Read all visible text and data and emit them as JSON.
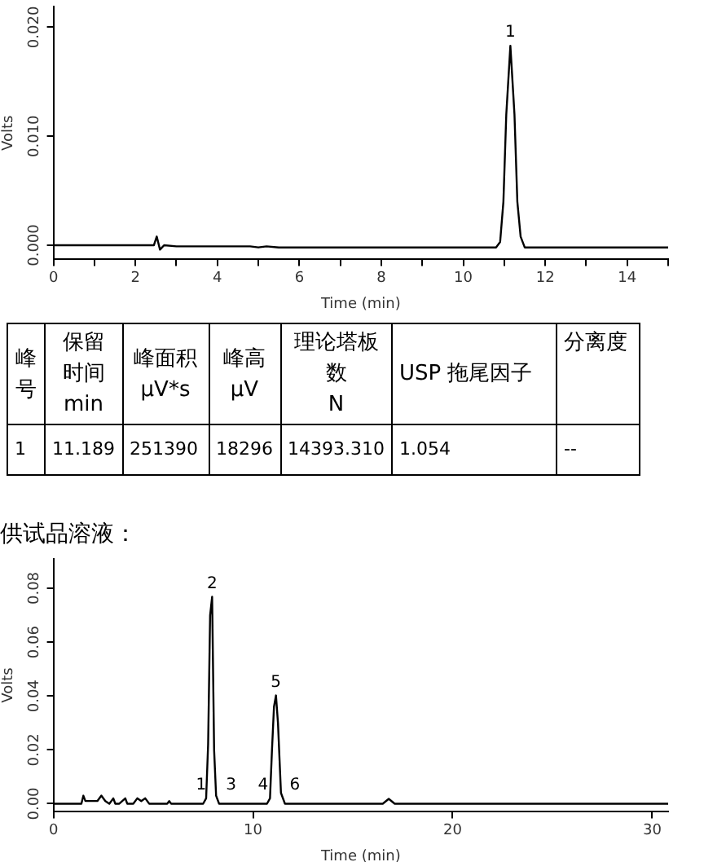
{
  "chart_data": [
    {
      "type": "line",
      "xlabel": "Time (min)",
      "ylabel": "Volts",
      "xlim": [
        0,
        15
      ],
      "ylim": [
        -0.0013,
        0.0219
      ],
      "xticks": [
        0,
        {
          "value": 1,
          "label": null
        },
        2,
        {
          "value": 3,
          "label": null
        },
        4,
        {
          "value": 5,
          "label": null
        },
        6,
        {
          "value": 7,
          "label": null
        },
        8,
        {
          "value": 9,
          "label": null
        },
        10,
        {
          "value": 11,
          "label": null
        },
        12,
        {
          "value": 13,
          "label": null
        },
        14,
        {
          "value": 15,
          "label": null
        }
      ],
      "yticks": [
        {
          "value": 0,
          "label": "0.000"
        },
        {
          "value": 0.01,
          "label": "0.010"
        },
        {
          "value": 0.02,
          "label": "0.020"
        }
      ],
      "grid": false,
      "legend": false,
      "marker": "none",
      "line_style": "solid",
      "series": [
        {
          "color": "#000000",
          "x": [
            0,
            2.45,
            2.52,
            2.6,
            2.7,
            3.0,
            4.8,
            5.0,
            5.2,
            5.5,
            6.0,
            10.8,
            10.9,
            10.98,
            11.05,
            11.15,
            11.25,
            11.32,
            11.4,
            11.5,
            15
          ],
          "values": [
            0,
            0,
            0.0008,
            -0.0004,
            0,
            -0.0001,
            -0.0001,
            -0.0002,
            -0.0001,
            -0.0002,
            -0.0002,
            -0.0002,
            0.0003,
            0.004,
            0.012,
            0.0183,
            0.012,
            0.004,
            0.0008,
            -0.0002,
            -0.0002
          ]
        }
      ],
      "annotations": [
        {
          "text": "1",
          "x": 11.15,
          "y": 0.0183
        }
      ]
    },
    {
      "type": "other",
      "annotations": [
        "峰号",
        "保留时间\nmin",
        "峰面积\nµV*s",
        "峰高\nµV",
        "理论塔板数\nN",
        "USP 拖尾因子",
        "分离度",
        "1",
        "11.189",
        "251390",
        "18296",
        "14393.310",
        "1.054",
        "--"
      ]
    },
    {
      "type": "line",
      "title": "供试品溶液：",
      "xlabel": "Time (min)",
      "ylabel": "Volts",
      "xlim": [
        0,
        30.8
      ],
      "ylim": [
        -0.003,
        0.091
      ],
      "xticks": [
        0,
        10,
        20,
        30
      ],
      "yticks": [
        {
          "value": 0,
          "label": "0.00"
        },
        {
          "value": 0.02,
          "label": "0.02"
        },
        {
          "value": 0.04,
          "label": "0.04"
        },
        {
          "value": 0.06,
          "label": "0.06"
        },
        {
          "value": 0.08,
          "label": "0.08"
        }
      ],
      "grid": false,
      "legend": false,
      "marker": "none",
      "line_style": "solid",
      "series": [
        {
          "color": "#000000",
          "x": [
            0,
            1.4,
            1.5,
            1.6,
            1.8,
            2.2,
            2.4,
            2.6,
            2.8,
            3.0,
            3.1,
            3.3,
            3.6,
            3.7,
            4.0,
            4.2,
            4.4,
            4.6,
            4.8,
            5.7,
            5.8,
            5.9,
            7.5,
            7.65,
            7.75,
            7.85,
            7.95,
            8.05,
            8.15,
            8.3,
            10.7,
            10.85,
            10.95,
            11.05,
            11.15,
            11.25,
            11.4,
            11.6,
            16.5,
            16.8,
            17.1,
            30.8
          ],
          "values": [
            0,
            0,
            0.003,
            0.001,
            0.001,
            0.001,
            0.003,
            0.001,
            0,
            0.002,
            0,
            0,
            0.002,
            0,
            0,
            0.002,
            0.001,
            0.002,
            0,
            0,
            0.001,
            0,
            0,
            0.002,
            0.022,
            0.07,
            0.0768,
            0.02,
            0.003,
            0,
            0,
            0.002,
            0.02,
            0.036,
            0.0402,
            0.03,
            0.004,
            0,
            0,
            0.0018,
            0,
            0
          ]
        }
      ],
      "annotations": [
        {
          "text": "1",
          "x": 7.4,
          "y": 0.002
        },
        {
          "text": "2",
          "x": 7.95,
          "y": 0.0768
        },
        {
          "text": "3",
          "x": 8.9,
          "y": 0.002
        },
        {
          "text": "4",
          "x": 10.5,
          "y": 0.002
        },
        {
          "text": "5",
          "x": 11.15,
          "y": 0.0402
        },
        {
          "text": "6",
          "x": 12.1,
          "y": 0.002
        }
      ]
    }
  ]
}
